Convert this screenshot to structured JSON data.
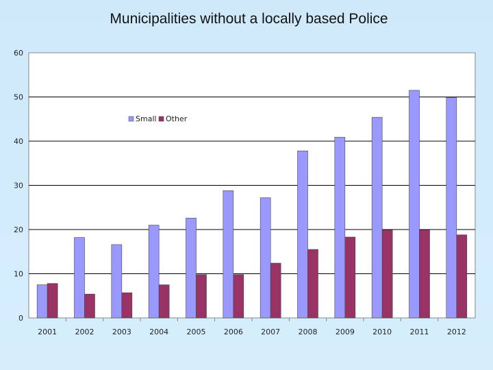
{
  "title": "Municipalities without a locally based Police",
  "chart_data": {
    "type": "bar",
    "title": "Municipalities without a locally based Police",
    "categories": [
      "2001",
      "2002",
      "2003",
      "2004",
      "2005",
      "2006",
      "2007",
      "2008",
      "2009",
      "2010",
      "2011",
      "2012"
    ],
    "series": [
      {
        "name": "Small",
        "color": "#9999ff",
        "values": [
          7.5,
          18.2,
          16.6,
          21.0,
          22.6,
          28.8,
          27.2,
          37.8,
          40.9,
          45.4,
          51.5,
          49.9
        ]
      },
      {
        "name": "Other",
        "color": "#993366",
        "values": [
          7.8,
          5.4,
          5.7,
          7.5,
          9.8,
          9.8,
          12.4,
          15.5,
          18.3,
          19.9,
          19.9,
          18.8
        ]
      }
    ],
    "ylim": [
      0,
      60
    ],
    "yticks": [
      0,
      10,
      20,
      30,
      40,
      50,
      60
    ],
    "grid": true,
    "legend_position": "upper-left-inside",
    "plot_background": "#ffffff"
  }
}
